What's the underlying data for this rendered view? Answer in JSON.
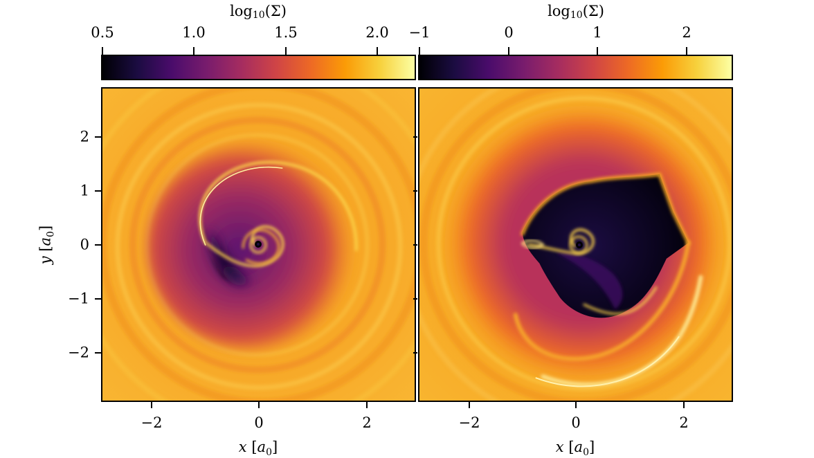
{
  "chart_data": [
    {
      "type": "heatmap",
      "panel": "left",
      "colormap": "inferno",
      "colorbar": {
        "title": "log10(Σ)",
        "title_base": "log",
        "title_sub": "10",
        "title_arg": "(Σ)",
        "range": [
          0.5,
          2.15
        ],
        "ticks": [
          0.5,
          1.0,
          1.5,
          2.0
        ],
        "tick_labels": [
          "0.5",
          "1.0",
          "1.5",
          "2.0"
        ]
      },
      "xlabel": "x [a0]",
      "ylabel": "y [a0]",
      "xlim": [
        -2.9,
        2.9
      ],
      "ylim": [
        -2.9,
        2.9
      ],
      "xticks": [
        -2,
        0,
        2
      ],
      "xtick_labels": [
        "−2",
        "0",
        "2"
      ],
      "yticks": [
        2,
        1,
        0,
        -1,
        -2
      ],
      "ytick_labels": [
        "2",
        "1",
        "0",
        "−1",
        "−2"
      ],
      "features": "single spiral gas cavity with central binary; inner spiral arms and outer concentric rings"
    },
    {
      "type": "heatmap",
      "panel": "right",
      "colormap": "inferno",
      "colorbar": {
        "title": "log10(Σ)",
        "title_base": "log",
        "title_sub": "10",
        "title_arg": "(Σ)",
        "range": [
          -1,
          2.5
        ],
        "ticks": [
          -1,
          0,
          1,
          2
        ],
        "tick_labels": [
          "−1",
          "0",
          "1",
          "2"
        ]
      },
      "xlabel": "x [a0]",
      "xlim": [
        -2.9,
        2.9
      ],
      "ylim": [
        -2.9,
        2.9
      ],
      "xticks": [
        -2,
        0,
        2
      ],
      "xtick_labels": [
        "−2",
        "0",
        "2"
      ],
      "features": "large eccentric low-density cavity with sharp edge; bright crescent at lower right"
    }
  ],
  "colors": {
    "inferno": [
      "#000004",
      "#1b0c41",
      "#4a0c6b",
      "#781c6d",
      "#a52c60",
      "#cf4446",
      "#ed6925",
      "#fb9b06",
      "#f7d13d",
      "#fcffa4"
    ],
    "background": "#f5a623"
  }
}
